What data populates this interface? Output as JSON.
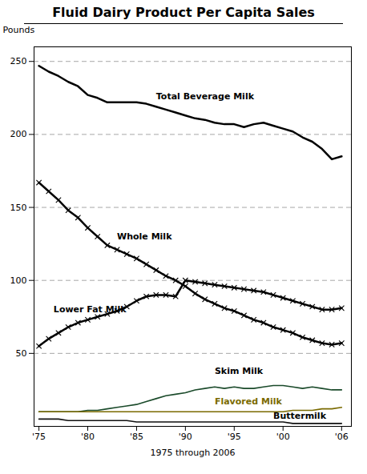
{
  "chart_data": {
    "type": "line",
    "title": "Fluid Dairy Product Per Capita Sales",
    "xlabel": "1975 through 2006",
    "ylabel": "Pounds",
    "x": [
      1975,
      1976,
      1977,
      1978,
      1979,
      1980,
      1981,
      1982,
      1983,
      1984,
      1985,
      1986,
      1987,
      1988,
      1989,
      1990,
      1991,
      1992,
      1993,
      1994,
      1995,
      1996,
      1997,
      1998,
      1999,
      2000,
      2001,
      2002,
      2003,
      2004,
      2005,
      2006
    ],
    "series": [
      {
        "name": "Total Beverage Milk",
        "color": "#000000",
        "line_style": "solid",
        "values": [
          247,
          243,
          240,
          236,
          233,
          227,
          225,
          222,
          222,
          222,
          222,
          221,
          219,
          217,
          215,
          213,
          211,
          210,
          208,
          207,
          207,
          205,
          207,
          208,
          206,
          204,
          202,
          198,
          195,
          190,
          183,
          185
        ]
      },
      {
        "name": "Whole Milk",
        "color": "#000000",
        "line_style": "solid",
        "marker": "x",
        "values": [
          167,
          161,
          155,
          148,
          143,
          136,
          130,
          124,
          121,
          118,
          115,
          111,
          107,
          103,
          100,
          96,
          91,
          87,
          84,
          81,
          79,
          76,
          73,
          71,
          68,
          66,
          64,
          61,
          59,
          57,
          56,
          57
        ]
      },
      {
        "name": "Lower Fat Milk",
        "color": "#000000",
        "line_style": "solid",
        "marker": "x",
        "values": [
          55,
          60,
          64,
          68,
          71,
          73,
          75,
          77,
          79,
          82,
          86,
          89,
          90,
          90,
          89,
          100,
          99,
          98,
          97,
          96,
          95,
          94,
          93,
          92,
          90,
          88,
          86,
          84,
          82,
          80,
          80,
          81
        ]
      },
      {
        "name": "Skim Milk",
        "color": "#1a4a2a",
        "line_style": "solid",
        "values": [
          10,
          10,
          10,
          10,
          10,
          11,
          11,
          12,
          13,
          14,
          15,
          17,
          19,
          21,
          22,
          23,
          25,
          26,
          27,
          26,
          27,
          26,
          26,
          27,
          28,
          28,
          27,
          26,
          27,
          26,
          25,
          25
        ]
      },
      {
        "name": "Flavored Milk",
        "color": "#7a6a00",
        "line_style": "solid",
        "values": [
          10,
          10,
          10,
          10,
          10,
          10,
          10,
          10,
          10,
          10,
          10,
          10,
          10,
          10,
          10,
          10,
          10,
          10,
          10,
          10,
          10,
          10,
          10,
          10,
          10,
          10,
          11,
          11,
          11,
          12,
          12,
          13
        ]
      },
      {
        "name": "Buttermilk",
        "color": "#111111",
        "line_style": "solid",
        "values": [
          5,
          5,
          5,
          4,
          4,
          4,
          4,
          4,
          4,
          4,
          3,
          3,
          3,
          3,
          3,
          3,
          3,
          3,
          3,
          3,
          3,
          3,
          3,
          3,
          3,
          3,
          2,
          2,
          2,
          2,
          2,
          2
        ]
      }
    ],
    "annotations": [
      {
        "text": "Total Beverage Milk",
        "x": 1987,
        "y": 224,
        "color": "#000000"
      },
      {
        "text": "Whole Milk",
        "x": 1983,
        "y": 128,
        "color": "#000000"
      },
      {
        "text": "Lower Fat Milk",
        "x": 1976.5,
        "y": 78,
        "color": "#000000"
      },
      {
        "text": "Skim Milk",
        "x": 1993,
        "y": 36,
        "color": "#000000"
      },
      {
        "text": "Flavored Milk",
        "x": 1993,
        "y": 15,
        "color": "#7a6a00"
      },
      {
        "text": "Buttermilk",
        "x": 1999,
        "y": 5,
        "color": "#000000"
      }
    ],
    "xlim": [
      1974.5,
      2007
    ],
    "xticks": [
      {
        "value": 1975,
        "label": "'75"
      },
      {
        "value": 1980,
        "label": "'80"
      },
      {
        "value": 1985,
        "label": "'85"
      },
      {
        "value": 1990,
        "label": "'90"
      },
      {
        "value": 1995,
        "label": "'95"
      },
      {
        "value": 2000,
        "label": "'00"
      },
      {
        "value": 2006,
        "label": "'06"
      }
    ],
    "ylim": [
      0,
      260
    ],
    "yticks": [
      50,
      100,
      150,
      200,
      250
    ],
    "grid": true
  }
}
